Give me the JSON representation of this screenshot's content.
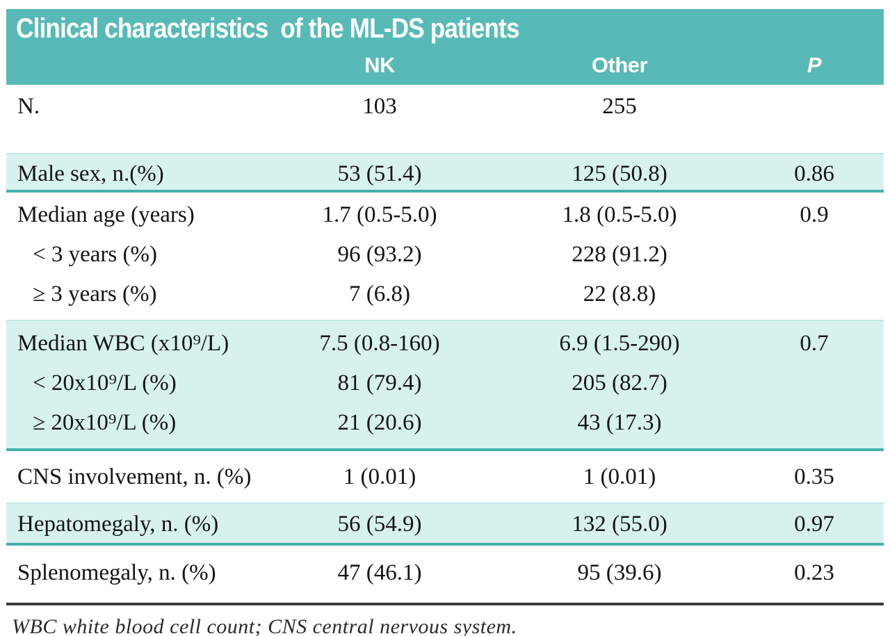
{
  "table": {
    "title": "Clinical characteristics  of the ML-DS patients",
    "columns": {
      "nk": "NK",
      "other": "Other",
      "p": "P"
    },
    "rows": [
      {
        "label": "N.",
        "nk": "103",
        "other": "255",
        "p": ""
      },
      {
        "label": "Male sex, n.(%)",
        "nk": "53 (51.4)",
        "other": "125 (50.8)",
        "p": "0.86"
      },
      {
        "label": "Median age (years)",
        "nk": "1.7 (0.5-5.0)",
        "other": "1.8 (0.5-5.0)",
        "p": "0.9"
      },
      {
        "label": "< 3 years (%)",
        "nk": "96 (93.2)",
        "other": "228 (91.2)",
        "p": ""
      },
      {
        "label": "≥ 3 years (%)",
        "nk": "7 (6.8)",
        "other": "22 (8.8)",
        "p": ""
      },
      {
        "label": "Median WBC (x10⁹/L)",
        "nk": "7.5 (0.8-160)",
        "other": "6.9 (1.5-290)",
        "p": "0.7"
      },
      {
        "label": "< 20x10⁹/L (%)",
        "nk": "81 (79.4)",
        "other": "205 (82.7)",
        "p": ""
      },
      {
        "label": "≥ 20x10⁹/L (%)",
        "nk": "21 (20.6)",
        "other": "43 (17.3)",
        "p": ""
      },
      {
        "label": "CNS involvement, n. (%)",
        "nk": "1 (0.01)",
        "other": "1 (0.01)",
        "p": "0.35"
      },
      {
        "label": "Hepatomegaly, n. (%)",
        "nk": "56 (54.9)",
        "other": "132 (55.0)",
        "p": "0.97"
      },
      {
        "label": "Splenomegaly, n. (%)",
        "nk": "47 (46.1)",
        "other": "95 (39.6)",
        "p": "0.23"
      }
    ],
    "footnote": "WBC white blood cell count; CNS central nervous system.",
    "colors": {
      "header_bg": "#57bab7",
      "header_text": "#ffffff",
      "band_bg": "#d7f1ef",
      "band_border": "#45b0ad",
      "body_text": "#141414",
      "rule": "#3a3a3a"
    }
  }
}
